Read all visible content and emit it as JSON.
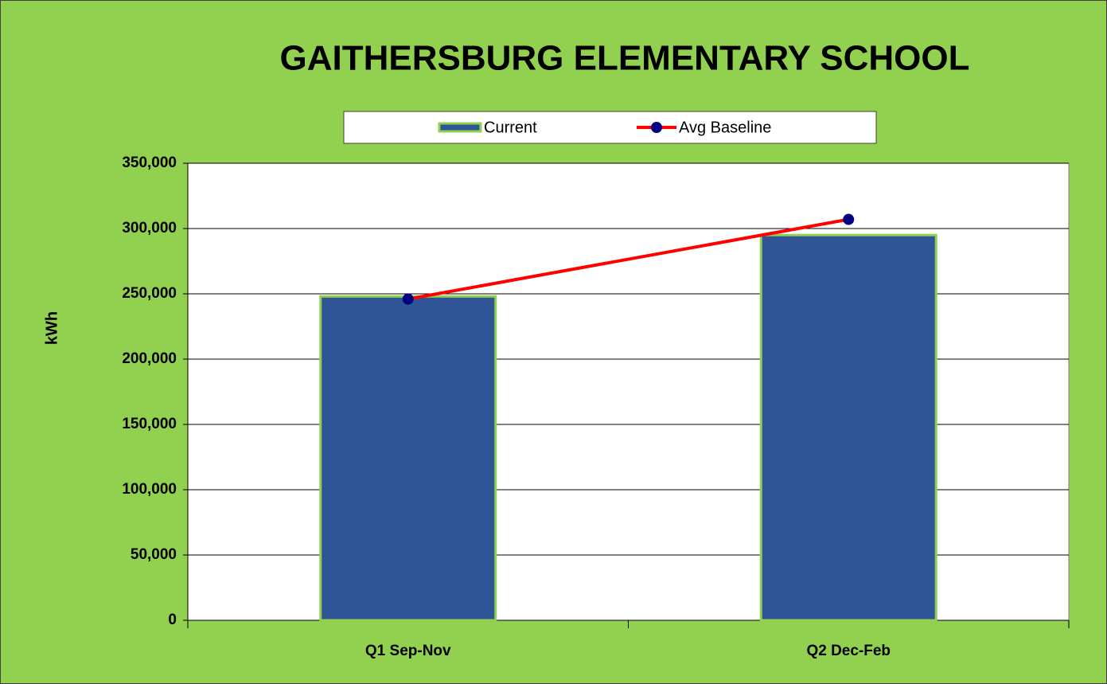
{
  "chart_data": {
    "type": "bar",
    "title": "GAITHERSBURG ELEMENTARY SCHOOL",
    "y_label": "kWh",
    "categories": [
      "Q1 Sep-Nov",
      "Q2 Dec-Feb"
    ],
    "series": [
      {
        "name": "Current",
        "type": "bar",
        "color": "#2f5597",
        "values": [
          248000,
          295000
        ]
      },
      {
        "name": "Avg Baseline",
        "type": "line",
        "color": "#ff0000",
        "marker_color": "#000080",
        "values": [
          246000,
          307000
        ]
      }
    ],
    "ylim": [
      0,
      350000
    ],
    "yticks": [
      0,
      {
        "value": 50000,
        "label": "50,000"
      },
      {
        "value": 100000,
        "label": "100,000"
      },
      {
        "value": 150000,
        "label": "150,000"
      },
      {
        "value": 200000,
        "label": "200,000"
      },
      {
        "value": 250000,
        "label": "250,000"
      },
      {
        "value": 300000,
        "label": "300,000"
      },
      {
        "value": 350000,
        "label": "350,000"
      }
    ],
    "grid": true,
    "legend": "top"
  }
}
